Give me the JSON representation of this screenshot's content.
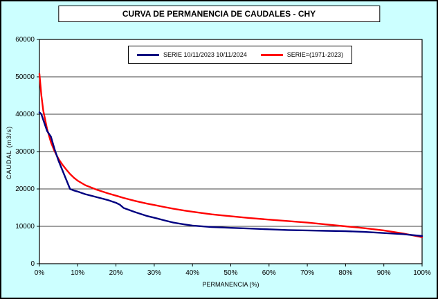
{
  "title": "CURVA DE PERMANENCIA DE CAUDALES - CHY",
  "colors": {
    "background": "#CCFFFF",
    "plot_background": "#FFFFFF",
    "axis": "#000000",
    "series_blue": "#000080",
    "series_red": "#FF0000"
  },
  "chart_data": {
    "type": "line",
    "title": "CURVA DE PERMANENCIA DE CAUDALES - CHY",
    "xlabel": "PERMANENCIA (%)",
    "ylabel": "CAUDAL (m3/s)",
    "xlim": [
      0,
      100
    ],
    "ylim": [
      0,
      60000
    ],
    "grid": "horizontal",
    "legend_position": "top-center",
    "xticks": [
      {
        "v": 0,
        "label": "0%"
      },
      {
        "v": 10,
        "label": "10%"
      },
      {
        "v": 20,
        "label": "20%"
      },
      {
        "v": 30,
        "label": "30%"
      },
      {
        "v": 40,
        "label": "40%"
      },
      {
        "v": 50,
        "label": "50%"
      },
      {
        "v": 60,
        "label": "60%"
      },
      {
        "v": 70,
        "label": "70%"
      },
      {
        "v": 80,
        "label": "80%"
      },
      {
        "v": 90,
        "label": "90%"
      },
      {
        "v": 100,
        "label": "100%"
      }
    ],
    "yticks": [
      {
        "v": 0,
        "label": "0"
      },
      {
        "v": 10000,
        "label": "10000"
      },
      {
        "v": 20000,
        "label": "20000"
      },
      {
        "v": 30000,
        "label": "30000"
      },
      {
        "v": 40000,
        "label": "40000"
      },
      {
        "v": 50000,
        "label": "50000"
      },
      {
        "v": 60000,
        "label": "60000"
      }
    ],
    "x": [
      0,
      0.5,
      1,
      2,
      3,
      4,
      5,
      6,
      7,
      8,
      9,
      10,
      12,
      15,
      18,
      20,
      21,
      22,
      25,
      28,
      30,
      33,
      35,
      38,
      40,
      45,
      50,
      55,
      60,
      65,
      70,
      75,
      80,
      85,
      90,
      95,
      100
    ],
    "series": [
      {
        "name": "SERIE 10/11/2023 10/11/2024",
        "color": "#000080",
        "values": [
          40500,
          40000,
          38500,
          35500,
          34000,
          30500,
          27500,
          25000,
          22500,
          20000,
          19600,
          19300,
          18600,
          17800,
          17000,
          16300,
          15800,
          14900,
          13800,
          12800,
          12300,
          11500,
          11000,
          10500,
          10200,
          9800,
          9600,
          9400,
          9200,
          9000,
          8900,
          8800,
          8700,
          8500,
          8200,
          7900,
          7400
        ]
      },
      {
        "name": "SERIE=(1971-2023)",
        "color": "#FF0000",
        "values": [
          50800,
          45000,
          41000,
          36000,
          32500,
          30000,
          28000,
          26500,
          25200,
          24000,
          23000,
          22200,
          21000,
          19800,
          18800,
          18200,
          17900,
          17600,
          16800,
          16100,
          15700,
          15100,
          14700,
          14200,
          13900,
          13200,
          12700,
          12200,
          11800,
          11400,
          11000,
          10500,
          10000,
          9500,
          8900,
          8100,
          7100
        ]
      }
    ]
  }
}
